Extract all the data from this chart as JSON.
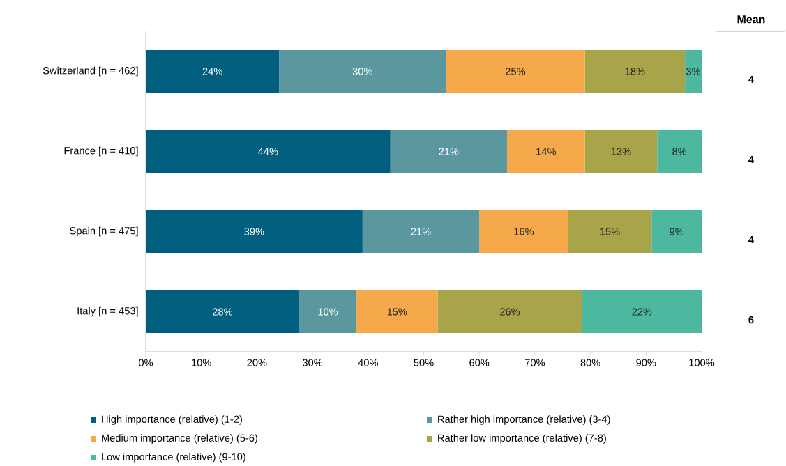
{
  "chart_data": {
    "type": "bar",
    "orientation": "horizontal",
    "stacked": true,
    "categories": [
      "Switzerland [n = 462]",
      "France [n = 410]",
      "Spain [n = 475]",
      "Italy [n = 453]"
    ],
    "series": [
      {
        "name": "High importance (relative) (1-2)",
        "color": "#005f7f",
        "values": [
          24,
          44,
          39,
          27.6
        ],
        "value_labels": [
          "24%",
          "44%",
          "39%",
          "28%"
        ]
      },
      {
        "name": "Rather high importance (relative) (3-4)",
        "color": "#5b979f",
        "values": [
          30,
          21,
          21,
          10.3
        ],
        "value_labels": [
          "30%",
          "21%",
          "21%",
          "10%"
        ]
      },
      {
        "name": "Medium importance (relative) (5-6)",
        "color": "#f5a94a",
        "values": [
          25,
          14,
          16,
          14.6
        ],
        "value_labels": [
          "25%",
          "14%",
          "16%",
          "15%"
        ]
      },
      {
        "name": "Rather low importance (relative) (7-8)",
        "color": "#a8a449",
        "values": [
          18,
          13,
          15,
          26
        ],
        "value_labels": [
          "18%",
          "13%",
          "15%",
          "26%"
        ]
      },
      {
        "name": "Low importance (relative) (9-10)",
        "color": "#4cb8a0",
        "values": [
          3,
          8,
          9,
          21.5
        ],
        "value_labels": [
          "3%",
          "8%",
          "9%",
          "22%"
        ]
      }
    ],
    "xlim": [
      0,
      100
    ],
    "xticks": [
      {
        "value": 0,
        "label": "0%"
      },
      {
        "value": 10,
        "label": "10%"
      },
      {
        "value": 20,
        "label": "20%"
      },
      {
        "value": 30,
        "label": "30%"
      },
      {
        "value": 40,
        "label": "40%"
      },
      {
        "value": 50,
        "label": "50%"
      },
      {
        "value": 60,
        "label": "60%"
      },
      {
        "value": 70,
        "label": "70%"
      },
      {
        "value": 80,
        "label": "80%"
      },
      {
        "value": 90,
        "label": "90%"
      },
      {
        "value": 100,
        "label": "100%"
      }
    ],
    "legend": "bottom",
    "grid": false,
    "annotations": [
      "Mean",
      "4",
      "4",
      "4",
      "6"
    ]
  }
}
